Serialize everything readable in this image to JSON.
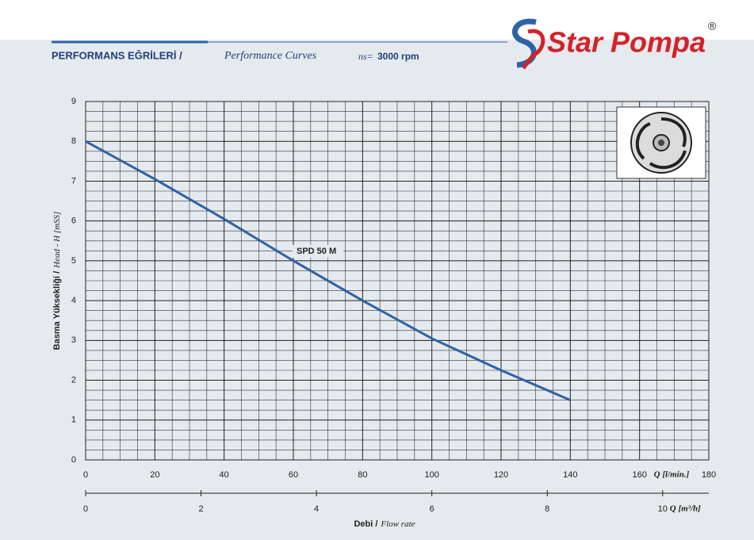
{
  "header": {
    "title": "PERFORMANS EĞRİLERİ /",
    "subtitle": "Performance Curves",
    "speed_symbol": "ns=",
    "speed": "3000 rpm",
    "brand": "Star Pompa",
    "registered": "®"
  },
  "chart_data": {
    "type": "line",
    "x": [
      0,
      20,
      40,
      60,
      80,
      100,
      120,
      140
    ],
    "series": [
      {
        "name": "SPD 50 M",
        "color": "#2d63a6",
        "values": [
          8.0,
          7.05,
          6.05,
          5.0,
          4.0,
          3.05,
          2.25,
          1.5
        ]
      }
    ],
    "xlim": [
      0,
      180
    ],
    "xticks": [
      0,
      20,
      40,
      60,
      80,
      100,
      120,
      140,
      160,
      180
    ],
    "ylim": [
      0,
      9
    ],
    "yticks": [
      0,
      1,
      2,
      3,
      4,
      5,
      6,
      7,
      8,
      9
    ],
    "x2lim": [
      0,
      10.8
    ],
    "x2ticks": [
      0,
      2,
      4,
      6,
      8,
      10
    ],
    "x_unit": "Q [l/min.]",
    "x2_unit": "Q [m³/h]",
    "x_label": "Debi /",
    "x_label_en": "Flow rate",
    "y_label": "Basma Yüksekliği /",
    "y_label_en": "Head - H [mSS]",
    "grid": true
  }
}
